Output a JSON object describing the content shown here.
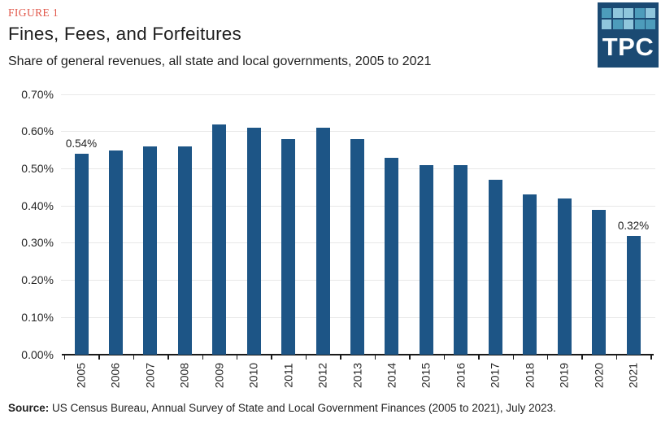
{
  "header": {
    "figure_label": "FIGURE 1",
    "title": "Fines, Fees, and Forfeitures",
    "subtitle": "Share of general revenues, all state and local governments, 2005 to 2021"
  },
  "logo": {
    "text": "TPC",
    "bg_color": "#1B4A73",
    "square_colors": [
      "#4D9CBB",
      "#8FC6DC",
      "#8FC6DC",
      "#4D9CBB",
      "#8FC6DC",
      "#8FC6DC",
      "#4D9CBB",
      "#8FC6DC",
      "#4D9CBB",
      "#4D9CBB"
    ]
  },
  "chart_data": {
    "type": "bar",
    "categories": [
      "2005",
      "2006",
      "2007",
      "2008",
      "2009",
      "2010",
      "2011",
      "2012",
      "2013",
      "2014",
      "2015",
      "2016",
      "2017",
      "2018",
      "2019",
      "2020",
      "2021"
    ],
    "values": [
      0.54,
      0.55,
      0.56,
      0.56,
      0.62,
      0.61,
      0.58,
      0.61,
      0.58,
      0.53,
      0.51,
      0.51,
      0.47,
      0.43,
      0.42,
      0.39,
      0.32
    ],
    "unit": "%",
    "title": "Fines, Fees, and Forfeitures",
    "xlabel": "",
    "ylabel": "",
    "ylim": [
      0,
      0.7
    ],
    "ytick_step": 0.1,
    "ytick_labels": [
      "0.00%",
      "0.10%",
      "0.20%",
      "0.30%",
      "0.40%",
      "0.50%",
      "0.60%",
      "0.70%"
    ],
    "grid": true,
    "legend": false,
    "bar_color": "#1D5586",
    "grid_color": "#E8E8E8",
    "axis_color": "#1a1a1a",
    "data_labels": [
      {
        "index": 0,
        "label": "0.54%"
      },
      {
        "index": 16,
        "label": "0.32%"
      }
    ]
  },
  "source": {
    "label": "Source:",
    "text": " US Census Bureau, Annual Survey of State and Local Government Finances (2005 to 2021), July 2023."
  }
}
